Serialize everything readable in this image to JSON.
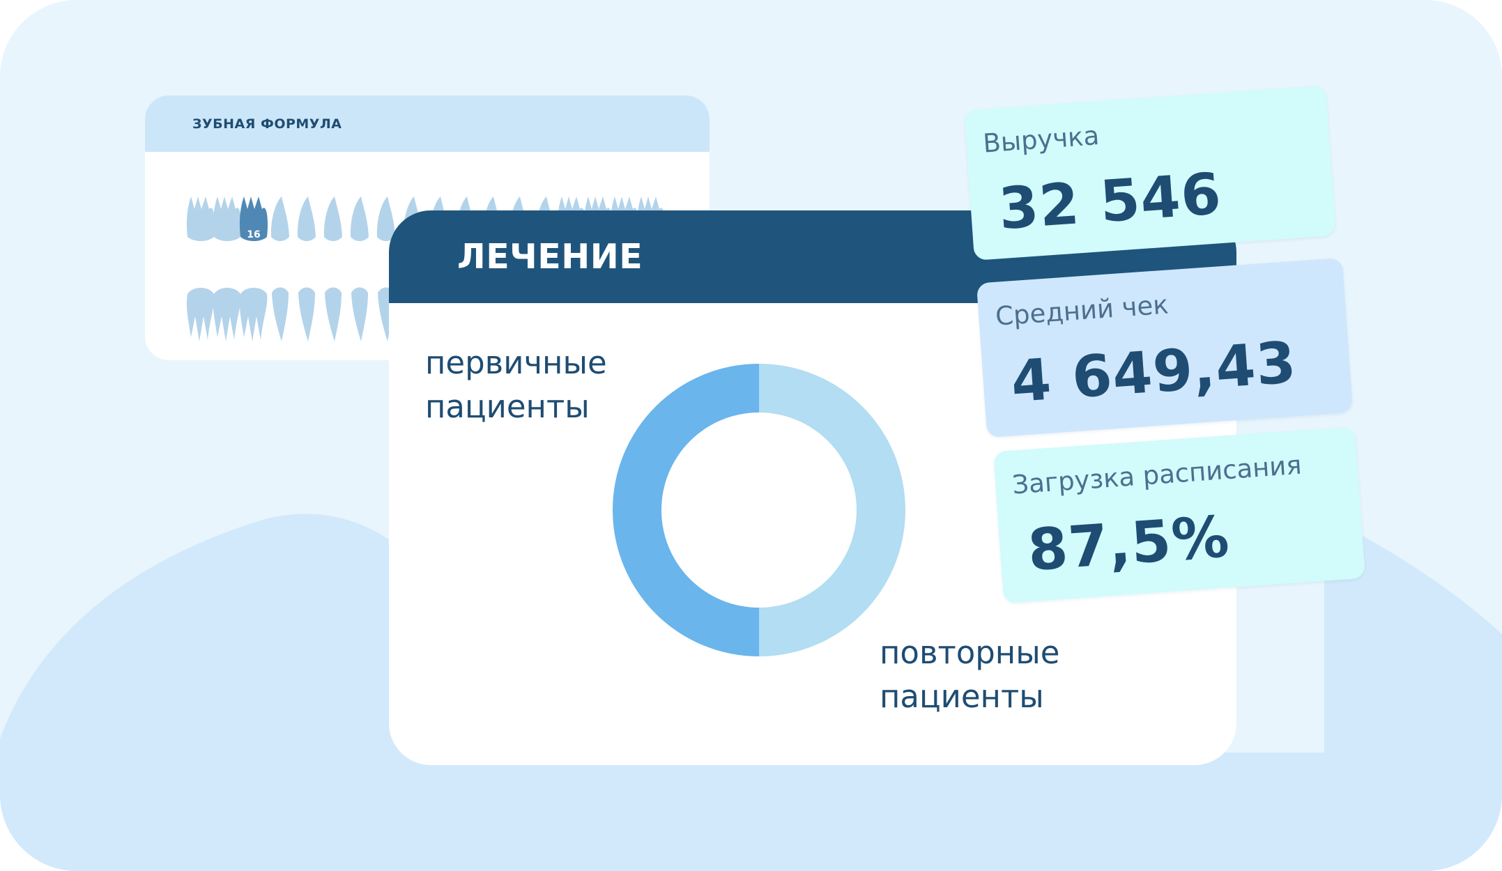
{
  "dental_formula": {
    "title": "ЗУБНАЯ ФОРМУЛА",
    "highlighted_tooth": "16"
  },
  "treatment": {
    "title": "ЛЕЧЕНИЕ",
    "primary_label_line1": "первичные",
    "primary_label_line2": "пациенты",
    "repeat_label_line1": "повторные",
    "repeat_label_line2": "пациенты",
    "colors": {
      "primary": "#6ab5ec",
      "repeat": "#b2ddf2"
    }
  },
  "chart_data": {
    "type": "pie",
    "categories": [
      "первичные пациенты",
      "повторные пациенты"
    ],
    "values": [
      50,
      50
    ]
  },
  "kpis": {
    "revenue": {
      "label": "Выручка",
      "value": "32 546"
    },
    "average_check": {
      "label": "Средний чек",
      "value": "4 649,43"
    },
    "schedule_load": {
      "label": "Загрузка расписания",
      "value": "87,5%"
    }
  }
}
